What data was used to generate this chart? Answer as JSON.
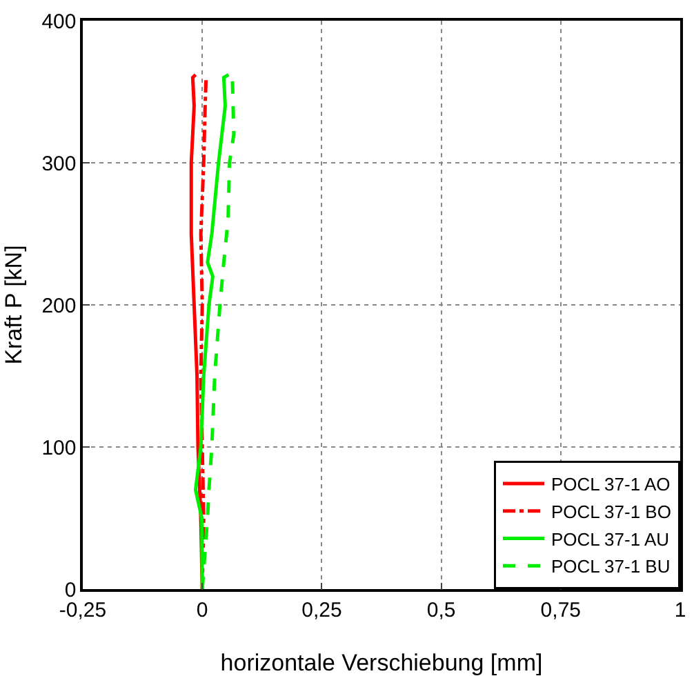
{
  "chart_data": {
    "type": "line",
    "xlabel": "horizontale Verschiebung [mm]",
    "ylabel": "Kraft P [kN]",
    "xlim": [
      -0.25,
      1
    ],
    "ylim": [
      0,
      400
    ],
    "xticks": [
      {
        "value": -0.25,
        "label": "-0,25"
      },
      0,
      {
        "value": 0.25,
        "label": "0,25"
      },
      {
        "value": 0.5,
        "label": "0,5"
      },
      {
        "value": 0.75,
        "label": "0,75"
      },
      1
    ],
    "yticks": [
      0,
      100,
      200,
      300,
      400
    ],
    "grid": true,
    "legend": "bottom right",
    "marker": "none",
    "series": [
      {
        "name": "POCL 37-1 AO",
        "color": "#ff0000",
        "line_style": "solid",
        "x": [
          0,
          -0.003,
          -0.009,
          -0.011,
          -0.017,
          -0.023,
          -0.023,
          -0.017,
          -0.02,
          -0.014
        ],
        "values": [
          0,
          50,
          100,
          150,
          200,
          250,
          300,
          340,
          360,
          362
        ]
      },
      {
        "name": "POCL 37-1 BO",
        "color": "#ff0000",
        "line_style": "dashdot",
        "x": [
          0,
          0.003,
          0,
          -0.003,
          0,
          -0.003,
          0.003,
          0.006,
          0.008
        ],
        "values": [
          0,
          50,
          100,
          150,
          200,
          250,
          300,
          340,
          360
        ]
      },
      {
        "name": "POCL 37-1 AU",
        "color": "#00ee00",
        "line_style": "solid",
        "x": [
          0,
          -0.001,
          -0.014,
          -0.003,
          0.003,
          0.014,
          0.022,
          0.011,
          0.02,
          0.034,
          0.048,
          0.045,
          0.055
        ],
        "values": [
          0,
          50,
          70,
          100,
          150,
          200,
          220,
          230,
          250,
          300,
          340,
          360,
          362
        ]
      },
      {
        "name": "POCL 37-1 BU",
        "color": "#00ee00",
        "line_style": "dashed",
        "x": [
          0,
          0.011,
          0.014,
          0.02,
          0.026,
          0.037,
          0.045,
          0.054,
          0.057,
          0.066,
          0.063
        ],
        "values": [
          0,
          50,
          70,
          100,
          150,
          200,
          230,
          260,
          300,
          320,
          360
        ]
      }
    ]
  }
}
